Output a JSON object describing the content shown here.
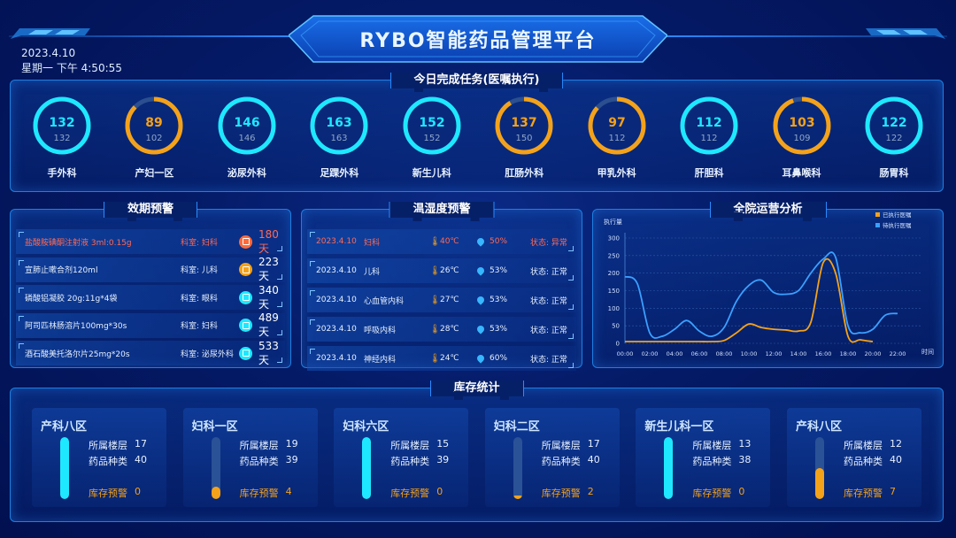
{
  "header": {
    "title": "RYBO智能药品管理平台",
    "date": "2023.4.10",
    "weekday_time": "星期一 下午 4:50:55"
  },
  "colors": {
    "cyan": "#1ee8ff",
    "orange": "#f4a21a",
    "alert_red": "#ff6a55",
    "executed": "#f4a21a",
    "pending": "#3aa0ff"
  },
  "tasks": {
    "title": "今日完成任务(医嘱执行)",
    "items": [
      {
        "label": "手外科",
        "done": 132,
        "total": 132,
        "color": "cyan"
      },
      {
        "label": "产妇一区",
        "done": 89,
        "total": 102,
        "color": "orange"
      },
      {
        "label": "泌尿外科",
        "done": 146,
        "total": 146,
        "color": "cyan"
      },
      {
        "label": "足踝外科",
        "done": 163,
        "total": 163,
        "color": "cyan"
      },
      {
        "label": "新生儿科",
        "done": 152,
        "total": 152,
        "color": "cyan"
      },
      {
        "label": "肛肠外科",
        "done": 137,
        "total": 150,
        "color": "orange"
      },
      {
        "label": "甲乳外科",
        "done": 97,
        "total": 112,
        "color": "orange"
      },
      {
        "label": "肝胆科",
        "done": 112,
        "total": 112,
        "color": "cyan"
      },
      {
        "label": "耳鼻喉科",
        "done": 103,
        "total": 109,
        "color": "orange"
      },
      {
        "label": "肠胃科",
        "done": 122,
        "total": 122,
        "color": "cyan"
      }
    ]
  },
  "expiry": {
    "title": "效期预警",
    "rows": [
      {
        "name": "盐酸胺碘酮注射液 3ml:0.15g",
        "dept": "科室: 妇科",
        "days": "180天",
        "icon_color": "#ff6a3a",
        "alert": true,
        "icon": "calendar-icon"
      },
      {
        "name": "宣肺止嗽合剂120ml",
        "dept": "科室: 儿科",
        "days": "223天",
        "icon_color": "#f4a21a",
        "alert": false,
        "icon": "calendar-icon"
      },
      {
        "name": "磷酸铝凝胶 20g:11g*4袋",
        "dept": "科室: 眼科",
        "days": "340天",
        "icon_color": "#1ee8ff",
        "alert": false,
        "icon": "calendar-icon"
      },
      {
        "name": "阿司匹林肠溶片100mg*30s",
        "dept": "科室: 妇科",
        "days": "489天",
        "icon_color": "#1ee8ff",
        "alert": false,
        "icon": "calendar-icon"
      },
      {
        "name": "酒石酸美托洛尔片25mg*20s",
        "dept": "科室: 泌尿外科",
        "days": "533天",
        "icon_color": "#1ee8ff",
        "alert": false,
        "icon": "calendar-icon"
      }
    ]
  },
  "humidity": {
    "title": "温湿度预警",
    "rows": [
      {
        "date": "2023.4.10",
        "dept": "妇科",
        "temp": "40℃",
        "hum": "50%",
        "status": "状态: 异常",
        "alert": true
      },
      {
        "date": "2023.4.10",
        "dept": "儿科",
        "temp": "26℃",
        "hum": "53%",
        "status": "状态: 正常",
        "alert": false
      },
      {
        "date": "2023.4.10",
        "dept": "心血管内科",
        "temp": "27℃",
        "hum": "53%",
        "status": "状态: 正常",
        "alert": false
      },
      {
        "date": "2023.4.10",
        "dept": "呼吸内科",
        "temp": "28℃",
        "hum": "53%",
        "status": "状态: 正常",
        "alert": false
      },
      {
        "date": "2023.4.10",
        "dept": "神经内科",
        "temp": "24℃",
        "hum": "60%",
        "status": "状态: 正常",
        "alert": false
      }
    ]
  },
  "analysis": {
    "title": "全院运营分析"
  },
  "chart_data": {
    "type": "line",
    "ylabel": "执行量",
    "xlabel": "时间",
    "ylim": [
      0,
      300
    ],
    "yticks": [
      0,
      50,
      100,
      150,
      200,
      250,
      300
    ],
    "x": [
      "00:00",
      "01:00",
      "02:00",
      "03:00",
      "04:00",
      "05:00",
      "06:00",
      "07:00",
      "08:00",
      "09:00",
      "10:00",
      "11:00",
      "12:00",
      "13:00",
      "14:00",
      "15:00",
      "16:00",
      "17:00",
      "18:00",
      "19:00",
      "20:00",
      "21:00",
      "22:00",
      "23:00",
      "24:00"
    ],
    "xticks": [
      "00:00",
      "02:00",
      "04:00",
      "06:00",
      "08:00",
      "10:00",
      "12:00",
      "14:00",
      "16:00",
      "18:00",
      "20:00",
      "22:00"
    ],
    "grid": true,
    "legend": "top-right",
    "series": [
      {
        "name": "已执行医嘱",
        "color": "#f4a21a",
        "values": [
          5,
          5,
          5,
          5,
          5,
          5,
          5,
          5,
          8,
          30,
          55,
          45,
          40,
          38,
          35,
          60,
          230,
          200,
          20,
          10,
          5,
          null,
          null,
          null,
          null
        ]
      },
      {
        "name": "待执行医嘱",
        "color": "#3aa0ff",
        "values": [
          190,
          170,
          30,
          20,
          40,
          65,
          35,
          20,
          45,
          120,
          165,
          180,
          145,
          140,
          150,
          200,
          240,
          245,
          50,
          30,
          40,
          80,
          85,
          null,
          null
        ]
      }
    ]
  },
  "stock": {
    "title": "库存统计",
    "floor_label": "所属楼层",
    "kind_label": "药品种类",
    "warn_label": "库存预警",
    "cards": [
      {
        "name": "产科八区",
        "floor": "17",
        "kinds": "40",
        "warn": "0",
        "level": 1.0,
        "color": "#1ee8ff"
      },
      {
        "name": "妇科一区",
        "floor": "19",
        "kinds": "39",
        "warn": "4",
        "level": 0.2,
        "color": "#f4a21a"
      },
      {
        "name": "妇科六区",
        "floor": "15",
        "kinds": "39",
        "warn": "0",
        "level": 1.0,
        "color": "#1ee8ff"
      },
      {
        "name": "妇科二区",
        "floor": "17",
        "kinds": "40",
        "warn": "2",
        "level": 0.06,
        "color": "#f4a21a"
      },
      {
        "name": "新生儿科一区",
        "floor": "13",
        "kinds": "38",
        "warn": "0",
        "level": 1.0,
        "color": "#1ee8ff"
      },
      {
        "name": "产科八区",
        "floor": "12",
        "kinds": "40",
        "warn": "7",
        "level": 0.5,
        "color": "#f4a21a"
      }
    ]
  }
}
